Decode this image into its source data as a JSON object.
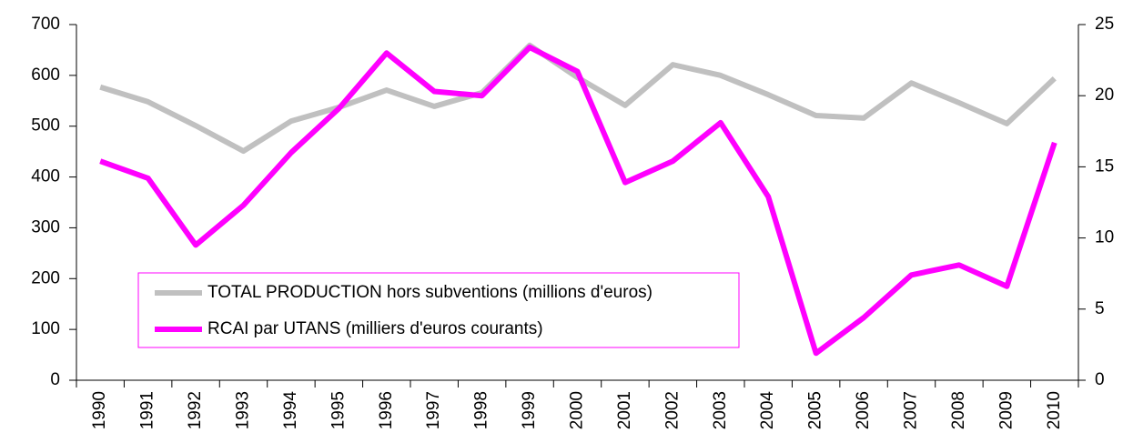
{
  "chart_data": {
    "type": "line",
    "categories": [
      "1990",
      "1991",
      "1992",
      "1993",
      "1994",
      "1995",
      "1996",
      "1997",
      "1998",
      "1999",
      "2000",
      "2001",
      "2002",
      "2003",
      "2004",
      "2005",
      "2006",
      "2007",
      "2008",
      "2009",
      "2010"
    ],
    "series": [
      {
        "name": "TOTAL PRODUCTION hors subventions (millions d'euros)",
        "color": "#c0c0c0",
        "axis": "y",
        "values": [
          577,
          548,
          501,
          451,
          510,
          537,
          571,
          539,
          566,
          659,
          596,
          541,
          621,
          600,
          562,
          521,
          516,
          585,
          546,
          505,
          594
        ]
      },
      {
        "name": "RCAI par UTANS (milliers d'euros courants)",
        "color": "#ff00ff",
        "axis": "y2",
        "values": [
          15.4,
          14.2,
          9.5,
          12.3,
          16.0,
          19.1,
          23.0,
          20.3,
          20.0,
          23.4,
          21.7,
          13.9,
          15.4,
          18.1,
          12.9,
          1.9,
          4.4,
          7.4,
          8.1,
          6.6,
          16.7
        ]
      }
    ],
    "ylim": [
      0,
      700
    ],
    "yticks": [
      0,
      100,
      200,
      300,
      400,
      500,
      600,
      700
    ],
    "y2lim": [
      0,
      25
    ],
    "y2ticks": [
      0,
      5,
      10,
      15,
      20,
      25
    ],
    "legend_position": "lower left",
    "legend_border_color": "#ff00ff"
  }
}
